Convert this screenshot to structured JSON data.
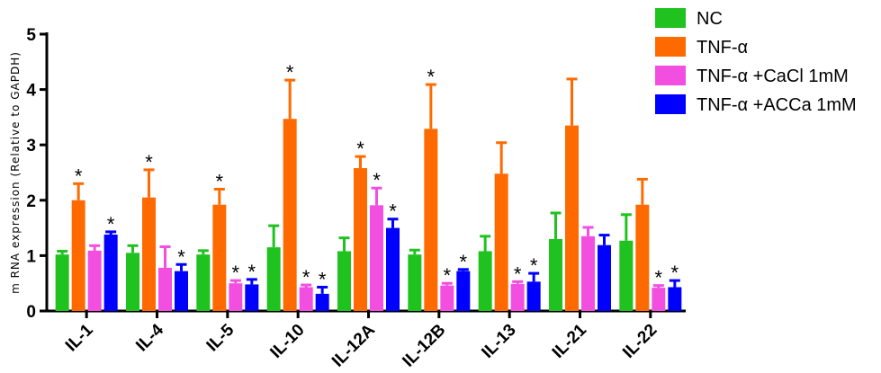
{
  "chart_data": {
    "type": "bar",
    "title": "",
    "xlabel": "",
    "ylabel": "m RNA expression (Relative to GAPDH)",
    "ylim": [
      0,
      5
    ],
    "yticks": [
      "0",
      "1",
      "2",
      "3",
      "4",
      "5"
    ],
    "categories": [
      "IL-1",
      "IL-4",
      "IL-5",
      "IL-10",
      "IL-12A",
      "IL-12B",
      "IL-13",
      "IL-21",
      "IL-22"
    ],
    "legend_position": "top-right",
    "significance_marker": "*",
    "series": [
      {
        "name": "NC",
        "color": "#1fc21f",
        "values": [
          1.02,
          1.05,
          1.02,
          1.15,
          1.08,
          1.02,
          1.08,
          1.3,
          1.27
        ],
        "errors": [
          0.06,
          0.13,
          0.07,
          0.39,
          0.24,
          0.08,
          0.27,
          0.47,
          0.47
        ],
        "significant": [
          false,
          false,
          false,
          false,
          false,
          false,
          false,
          false,
          false
        ]
      },
      {
        "name": "TNF-α",
        "color": "#ff6a00",
        "values": [
          2.0,
          2.05,
          1.92,
          3.47,
          2.58,
          3.29,
          2.48,
          3.35,
          1.92
        ],
        "errors": [
          0.3,
          0.5,
          0.28,
          0.7,
          0.21,
          0.8,
          0.56,
          0.84,
          0.46
        ],
        "significant": [
          true,
          true,
          true,
          true,
          true,
          true,
          false,
          false,
          false
        ]
      },
      {
        "name": "TNF-α  +CaCl 1mM",
        "color": "#f24fe0",
        "values": [
          1.09,
          0.78,
          0.5,
          0.43,
          1.91,
          0.46,
          0.49,
          1.35,
          0.42
        ],
        "errors": [
          0.09,
          0.38,
          0.05,
          0.04,
          0.31,
          0.04,
          0.04,
          0.16,
          0.04
        ],
        "significant": [
          false,
          false,
          true,
          true,
          true,
          true,
          true,
          false,
          true
        ]
      },
      {
        "name": "TNF-α  +ACCa 1mM",
        "color": "#0000ff",
        "values": [
          1.38,
          0.72,
          0.48,
          0.31,
          1.5,
          0.72,
          0.53,
          1.19,
          0.43
        ],
        "errors": [
          0.05,
          0.12,
          0.09,
          0.12,
          0.16,
          0.03,
          0.15,
          0.18,
          0.12
        ],
        "significant": [
          true,
          true,
          true,
          true,
          true,
          true,
          true,
          false,
          true
        ]
      }
    ]
  }
}
